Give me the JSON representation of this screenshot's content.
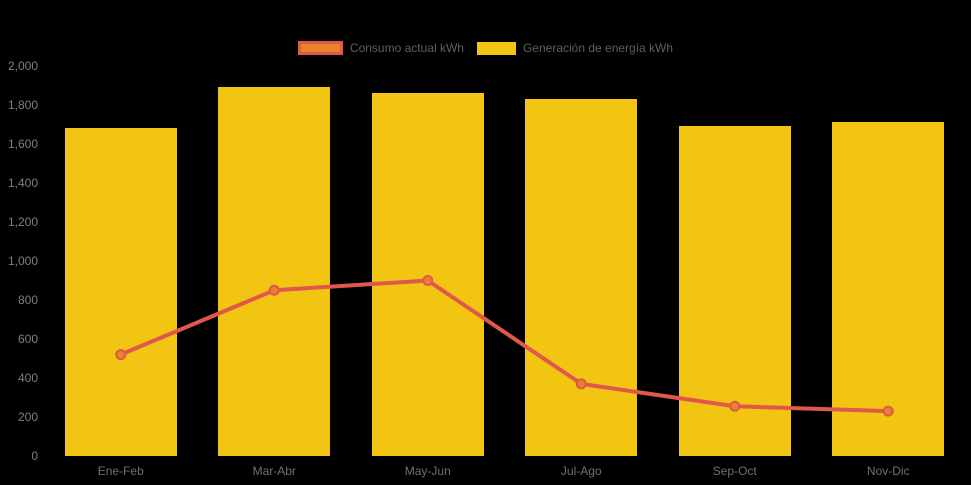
{
  "chart_data": {
    "type": "bar",
    "title": "",
    "categories": [
      "Ene-Feb",
      "Mar-Abr",
      "May-Jun",
      "Jul-Ago",
      "Sep-Oct",
      "Nov-Dic"
    ],
    "series": [
      {
        "name": "Consumo actual kWh",
        "type": "line",
        "values": [
          520,
          850,
          900,
          370,
          255,
          230
        ],
        "line_color": "#e2574c",
        "marker_fill": "#e8822b"
      },
      {
        "name": "Generación de energía kWh",
        "type": "bar",
        "values": [
          1680,
          1890,
          1860,
          1830,
          1690,
          1715
        ],
        "bar_color": "#f1c511"
      }
    ],
    "xlabel": "",
    "ylabel": "",
    "ylim": [
      0,
      2000
    ],
    "ytick_step": 200,
    "ytick_labels": [
      "0",
      "200",
      "400",
      "600",
      "800",
      "1,000",
      "1,200",
      "1,400",
      "1,600",
      "1,800",
      "2,000"
    ],
    "grid": false,
    "legend_position": "top",
    "background_color": "#000000"
  }
}
